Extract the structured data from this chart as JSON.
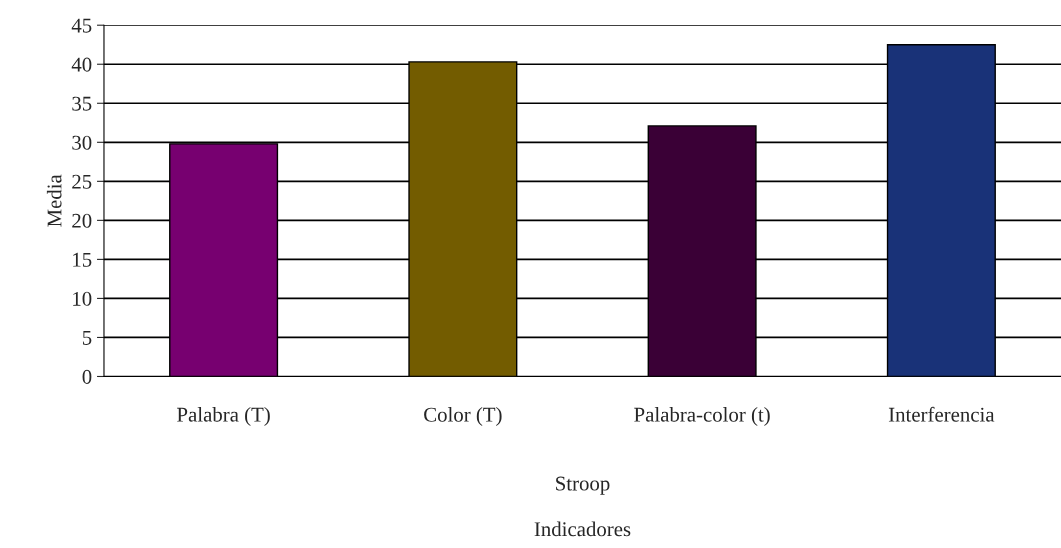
{
  "chart_data": {
    "type": "bar",
    "ylabel": "Media",
    "categories": [
      "Palabra (T)",
      "Color (T)",
      "Palabra-color (t)",
      "Interferencia"
    ],
    "values": [
      29.8,
      40.3,
      32.1,
      42.5
    ],
    "colors": [
      "#770070",
      "#735c00",
      "#3a0036",
      "#193278"
    ],
    "ylim": [
      0,
      45
    ],
    "yticks": [
      0,
      5,
      10,
      15,
      20,
      25,
      30,
      35,
      40,
      45
    ],
    "grid": "y",
    "annotations": [
      "Stroop",
      "Indicadores"
    ]
  }
}
